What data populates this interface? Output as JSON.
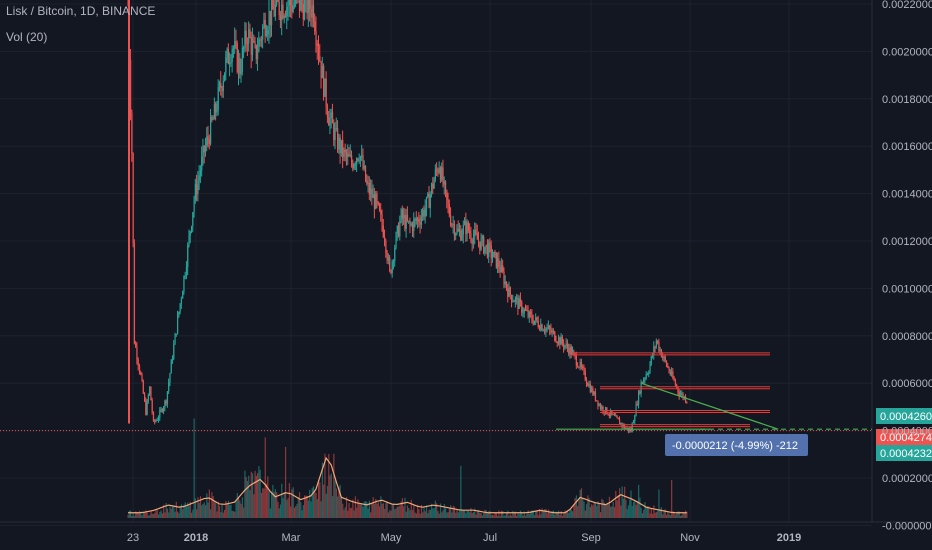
{
  "header": {
    "symbol": "Lisk / Bitcoin, 1D, BINANCE",
    "volume": "Vol (20)"
  },
  "chart_data": {
    "type": "candlestick",
    "title": "Lisk / Bitcoin, 1D, BINANCE",
    "y_axis": {
      "ticks": [
        "0.0022000",
        "0.0020000",
        "0.0018000",
        "0.0016000",
        "0.0014000",
        "0.0012000",
        "0.0010000",
        "0.0008000",
        "0.0006000",
        "0.0004000",
        "0.0002000",
        "-0.0000000"
      ]
    },
    "x_axis": {
      "ticks": [
        "23",
        "2018",
        "Mar",
        "May",
        "Jul",
        "Sep",
        "Nov",
        "2019"
      ]
    },
    "price_path": [
      [
        0,
        0.00222
      ],
      [
        3,
        0.0016
      ],
      [
        5,
        0.0008
      ],
      [
        10,
        0.00065
      ],
      [
        14,
        0.0005
      ],
      [
        17,
        0.0006
      ],
      [
        20,
        0.00045
      ],
      [
        24,
        0.00048
      ],
      [
        30,
        0.00055
      ],
      [
        38,
        0.00085
      ],
      [
        45,
        0.0011
      ],
      [
        52,
        0.0014
      ],
      [
        60,
        0.0016
      ],
      [
        68,
        0.00175
      ],
      [
        76,
        0.00195
      ],
      [
        82,
        0.00205
      ],
      [
        88,
        0.00195
      ],
      [
        94,
        0.0021
      ],
      [
        100,
        0.002
      ],
      [
        108,
        0.00215
      ],
      [
        116,
        0.0022
      ],
      [
        124,
        0.00222
      ],
      [
        140,
        0.00222
      ],
      [
        146,
        0.0022
      ],
      [
        152,
        0.00195
      ],
      [
        158,
        0.00175
      ],
      [
        164,
        0.00165
      ],
      [
        170,
        0.00158
      ],
      [
        176,
        0.00155
      ],
      [
        182,
        0.0016
      ],
      [
        188,
        0.00145
      ],
      [
        195,
        0.00138
      ],
      [
        202,
        0.00125
      ],
      [
        206,
        0.00108
      ],
      [
        210,
        0.0012
      ],
      [
        215,
        0.00132
      ],
      [
        222,
        0.00128
      ],
      [
        230,
        0.00132
      ],
      [
        236,
        0.00138
      ],
      [
        241,
        0.00148
      ],
      [
        245,
        0.00155
      ],
      [
        250,
        0.0014
      ],
      [
        255,
        0.0013
      ],
      [
        260,
        0.00125
      ],
      [
        266,
        0.00128
      ],
      [
        270,
        0.00125
      ],
      [
        276,
        0.00122
      ],
      [
        284,
        0.00118
      ],
      [
        292,
        0.00112
      ],
      [
        300,
        0.001
      ],
      [
        308,
        0.00095
      ],
      [
        316,
        0.0009
      ],
      [
        324,
        0.00087
      ],
      [
        332,
        0.00084
      ],
      [
        340,
        0.0008
      ],
      [
        348,
        0.00076
      ],
      [
        356,
        0.00069
      ],
      [
        364,
        0.0006
      ],
      [
        372,
        0.00052
      ],
      [
        382,
        0.00048
      ],
      [
        392,
        0.00043
      ],
      [
        396,
        0.00042
      ],
      [
        404,
        0.00062
      ],
      [
        410,
        0.00068
      ],
      [
        416,
        0.0008
      ],
      [
        422,
        0.00072
      ],
      [
        428,
        0.00065
      ],
      [
        434,
        0.00058
      ],
      [
        440,
        0.00055
      ],
      [
        448,
        0.00052
      ],
      [
        456,
        0.0005
      ],
      [
        462,
        0.00048
      ],
      [
        468,
        0.00046
      ],
      [
        474,
        0.00047
      ],
      [
        480,
        0.00045
      ],
      [
        488,
        0.00044
      ],
      [
        494,
        0.00043
      ],
      [
        500,
        0.00042
      ]
    ],
    "volume_path": [
      0.02,
      0.02,
      0.03,
      0.05,
      0.04,
      0.06,
      0.08,
      0.05,
      0.06,
      0.12,
      0.15,
      0.08,
      0.1,
      0.07,
      0.09,
      0.25,
      0.08,
      0.06,
      0.05,
      0.07,
      0.05,
      0.06,
      0.04,
      0.05,
      0.04,
      0.03,
      0.03,
      0.02,
      0.02,
      0.02,
      0.02,
      0.03,
      0.02,
      0.02,
      0.08,
      0.06,
      0.05,
      0.09,
      0.07,
      0.04,
      0.03,
      0.02,
      0.02
    ],
    "volume_spikes": [
      [
        52,
        0.42
      ],
      [
        92,
        0.2
      ],
      [
        108,
        0.34
      ],
      [
        124,
        0.3
      ],
      [
        150,
        0.16
      ],
      [
        262,
        0.22
      ],
      [
        402,
        0.14
      ],
      [
        418,
        0.12
      ],
      [
        428,
        0.16
      ],
      [
        474,
        0.24
      ],
      [
        480,
        0.14
      ]
    ],
    "horizontal_levels": [
      0.000748,
      0.000605,
      0.000505,
      0.000445
    ],
    "support_level": 0.000426,
    "trendline": [
      [
        404,
        0.00062
      ],
      [
        512,
        0.000426
      ]
    ],
    "current_price_line": 0.00042,
    "price_labels": [
      {
        "text": "0.0004260",
        "value": 0.000426,
        "color": "#26a69a"
      },
      {
        "text": "0.0004274",
        "value": 0.0004274,
        "color": "#ef5350"
      },
      {
        "text": "0.0004232",
        "value": 0.0004232,
        "color": "#26a69a"
      }
    ],
    "measure_box": {
      "text": "-0.0000212 (-4.99%) -212"
    },
    "colors": {
      "up": "#26a69a",
      "down": "#ef5350",
      "background": "#131722",
      "grid": "#1e222d",
      "axis_text": "#b2b5be"
    }
  }
}
